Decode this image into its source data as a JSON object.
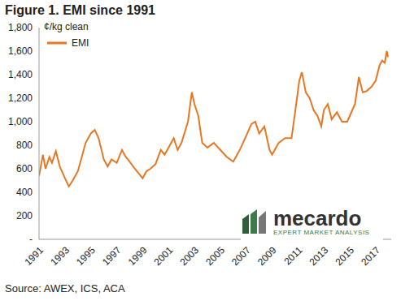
{
  "chart_data": {
    "type": "line",
    "title": "Figure 1. EMI since 1991",
    "ylabel": "¢/kg clean",
    "annotations": [
      "Source: AWEX, ICS, ACA",
      "mecardo",
      "EXPERT MARKET ANALYSIS"
    ],
    "x": [
      1991.0,
      1991.3,
      1991.5,
      1991.8,
      1992.0,
      1992.3,
      1992.6,
      1993.0,
      1993.3,
      1993.6,
      1994.0,
      1994.3,
      1994.6,
      1995.0,
      1995.3,
      1995.6,
      1996.0,
      1996.3,
      1996.6,
      1997.0,
      1997.4,
      1997.7,
      1998.0,
      1998.4,
      1998.7,
      1999.0,
      1999.3,
      1999.6,
      2000.0,
      2000.4,
      2000.7,
      2001.0,
      2001.4,
      2001.7,
      2002.0,
      2002.5,
      2002.8,
      2003.0,
      2003.3,
      2003.6,
      2004.0,
      2004.5,
      2005.0,
      2005.5,
      2006.0,
      2006.5,
      2007.0,
      2007.4,
      2007.7,
      2008.0,
      2008.4,
      2008.8,
      2009.0,
      2009.5,
      2010.0,
      2010.5,
      2010.8,
      2011.1,
      2011.3,
      2011.6,
      2011.9,
      2012.2,
      2012.5,
      2012.8,
      2013.0,
      2013.3,
      2013.6,
      2014.0,
      2014.4,
      2014.8,
      2015.0,
      2015.4,
      2015.7,
      2016.0,
      2016.3,
      2016.7,
      2017.0,
      2017.3,
      2017.5,
      2017.7,
      2017.85,
      2017.95
    ],
    "series": [
      {
        "name": "EMI",
        "color": "#e87722",
        "values": [
          540,
          720,
          600,
          700,
          650,
          750,
          620,
          520,
          450,
          500,
          580,
          700,
          820,
          900,
          930,
          860,
          680,
          620,
          680,
          650,
          760,
          700,
          660,
          600,
          560,
          520,
          580,
          600,
          640,
          760,
          720,
          780,
          860,
          760,
          820,
          1000,
          1250,
          1150,
          1050,
          820,
          780,
          820,
          760,
          700,
          660,
          760,
          880,
          980,
          1000,
          900,
          960,
          760,
          720,
          820,
          860,
          860,
          1100,
          1350,
          1420,
          1250,
          1200,
          1100,
          1050,
          960,
          1100,
          1150,
          1020,
          1080,
          1000,
          1000,
          1050,
          1150,
          1380,
          1250,
          1260,
          1300,
          1350,
          1480,
          1520,
          1500,
          1600,
          1550
        ]
      }
    ],
    "xlim": [
      1991,
      2018.2
    ],
    "xticks": [
      1991,
      1993,
      1995,
      1997,
      1999,
      2001,
      2003,
      2005,
      2007,
      2009,
      2011,
      2013,
      2015,
      2017
    ],
    "ylim": [
      0,
      1800
    ],
    "yticks": [
      {
        "value": 0,
        "label": "-"
      },
      200,
      400,
      600,
      800,
      {
        "value": 1000,
        "label": "1,000"
      },
      {
        "value": 1200,
        "label": "1,200"
      },
      {
        "value": 1400,
        "label": "1,400"
      },
      {
        "value": 1600,
        "label": "1,600"
      },
      {
        "value": 1800,
        "label": "1,800"
      }
    ],
    "grid": false,
    "legend": "top-left"
  }
}
